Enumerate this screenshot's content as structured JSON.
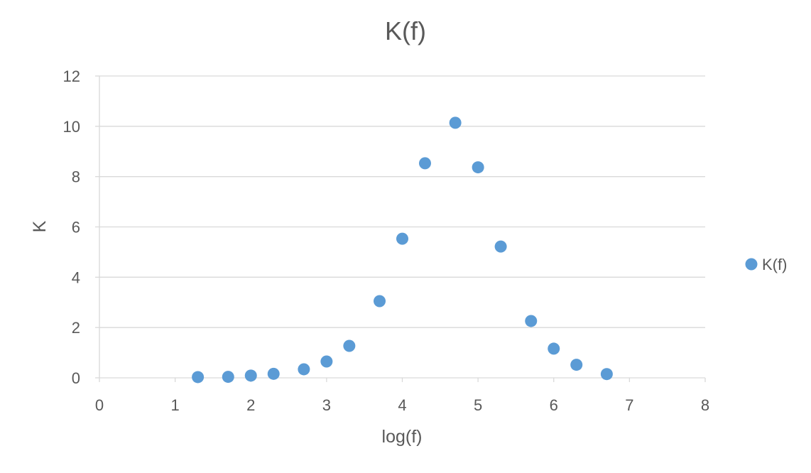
{
  "chart_data": {
    "type": "scatter",
    "title": "K(f)",
    "xlabel": "log(f)",
    "ylabel": "K",
    "xlim": [
      0,
      8
    ],
    "ylim": [
      0,
      12
    ],
    "x_ticks": [
      "0",
      "1",
      "2",
      "3",
      "4",
      "5",
      "6",
      "7",
      "8"
    ],
    "y_ticks": [
      "0",
      "2",
      "4",
      "6",
      "8",
      "10",
      "12"
    ],
    "grid": "horizontal",
    "legend_position": "right",
    "series": [
      {
        "name": "K(f)",
        "color": "#5b9bd5",
        "points": [
          {
            "x": 1.3,
            "y": 0.03
          },
          {
            "x": 1.7,
            "y": 0.04
          },
          {
            "x": 2.0,
            "y": 0.09
          },
          {
            "x": 2.3,
            "y": 0.16
          },
          {
            "x": 2.7,
            "y": 0.34
          },
          {
            "x": 3.0,
            "y": 0.65
          },
          {
            "x": 3.3,
            "y": 1.27
          },
          {
            "x": 3.7,
            "y": 3.05
          },
          {
            "x": 4.0,
            "y": 5.53
          },
          {
            "x": 4.3,
            "y": 8.53
          },
          {
            "x": 4.7,
            "y": 10.14
          },
          {
            "x": 5.0,
            "y": 8.37
          },
          {
            "x": 5.3,
            "y": 5.22
          },
          {
            "x": 5.7,
            "y": 2.26
          },
          {
            "x": 6.0,
            "y": 1.16
          },
          {
            "x": 6.3,
            "y": 0.52
          },
          {
            "x": 6.7,
            "y": 0.15
          }
        ]
      }
    ]
  }
}
